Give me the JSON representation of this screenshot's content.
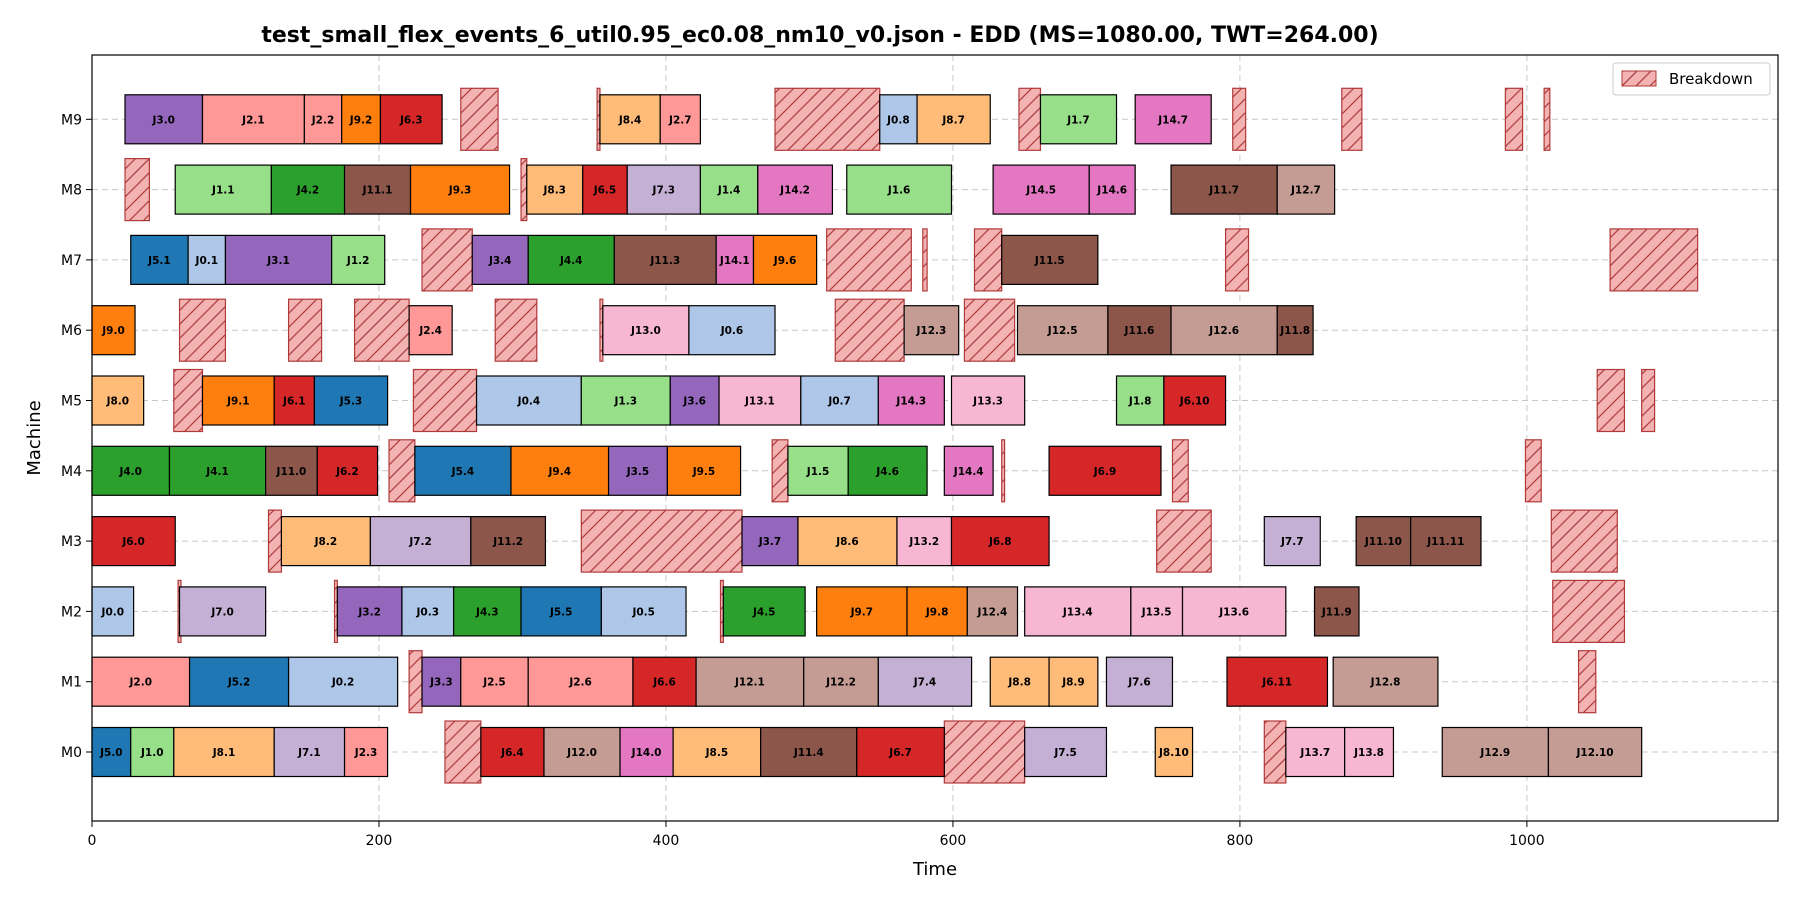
{
  "chart_data": {
    "type": "gantt",
    "title": "test_small_flex_events_6_util0.95_ec0.08_nm10_v0.json - EDD (MS=1080.00, TWT=264.00)",
    "xlabel": "Time",
    "ylabel": "Machine",
    "xlim": [
      0,
      1175
    ],
    "xticks": [
      0,
      200,
      400,
      600,
      800,
      1000
    ],
    "machines": [
      "M0",
      "M1",
      "M2",
      "M3",
      "M4",
      "M5",
      "M6",
      "M7",
      "M8",
      "M9"
    ],
    "grid": true,
    "legend": {
      "position": "top-right",
      "entries": [
        "Breakdown"
      ]
    },
    "job_colors": {
      "J0": "#aec7e8",
      "J1": "#98df8a",
      "J2": "#ff9896",
      "J3": "#9467bd",
      "J4": "#2ca02c",
      "J5": "#1f77b4",
      "J6": "#d62728",
      "J7": "#c5b0d5",
      "J8": "#ffbb78",
      "J9": "#ff7f0e",
      "J11": "#8c564b",
      "J12": "#c49c94",
      "J13": "#f7b6d2",
      "J14": "#e377c2"
    },
    "breakdown_color": "#f4b3b3",
    "operations": [
      {
        "m": "M0",
        "label": "J5.0",
        "start": 0,
        "end": 27
      },
      {
        "m": "M0",
        "label": "J1.0",
        "start": 27,
        "end": 57
      },
      {
        "m": "M0",
        "label": "J8.1",
        "start": 57,
        "end": 127
      },
      {
        "m": "M0",
        "label": "J7.1",
        "start": 127,
        "end": 176
      },
      {
        "m": "M0",
        "label": "J2.3",
        "start": 176,
        "end": 206
      },
      {
        "m": "M0",
        "label": "J6.4",
        "start": 271,
        "end": 315
      },
      {
        "m": "M0",
        "label": "J12.0",
        "start": 315,
        "end": 368
      },
      {
        "m": "M0",
        "label": "J14.0",
        "start": 368,
        "end": 405
      },
      {
        "m": "M0",
        "label": "J8.5",
        "start": 405,
        "end": 466
      },
      {
        "m": "M0",
        "label": "J11.4",
        "start": 466,
        "end": 533
      },
      {
        "m": "M0",
        "label": "J6.7",
        "start": 533,
        "end": 594
      },
      {
        "m": "M0",
        "label": "J7.5",
        "start": 650,
        "end": 707
      },
      {
        "m": "M0",
        "label": "J8.10",
        "start": 741,
        "end": 767
      },
      {
        "m": "M0",
        "label": "J13.7",
        "start": 832,
        "end": 873
      },
      {
        "m": "M0",
        "label": "J13.8",
        "start": 873,
        "end": 907
      },
      {
        "m": "M0",
        "label": "J12.9",
        "start": 941,
        "end": 1015
      },
      {
        "m": "M0",
        "label": "J12.10",
        "start": 1015,
        "end": 1080
      },
      {
        "m": "M1",
        "label": "J2.0",
        "start": 0,
        "end": 68
      },
      {
        "m": "M1",
        "label": "J5.2",
        "start": 68,
        "end": 137
      },
      {
        "m": "M1",
        "label": "J0.2",
        "start": 137,
        "end": 213
      },
      {
        "m": "M1",
        "label": "J3.3",
        "start": 230,
        "end": 257
      },
      {
        "m": "M1",
        "label": "J2.5",
        "start": 257,
        "end": 304
      },
      {
        "m": "M1",
        "label": "J2.6",
        "start": 304,
        "end": 377
      },
      {
        "m": "M1",
        "label": "J6.6",
        "start": 377,
        "end": 421
      },
      {
        "m": "M1",
        "label": "J12.1",
        "start": 421,
        "end": 496
      },
      {
        "m": "M1",
        "label": "J12.2",
        "start": 496,
        "end": 548
      },
      {
        "m": "M1",
        "label": "J7.4",
        "start": 548,
        "end": 613
      },
      {
        "m": "M1",
        "label": "J8.8",
        "start": 626,
        "end": 667
      },
      {
        "m": "M1",
        "label": "J8.9",
        "start": 667,
        "end": 701
      },
      {
        "m": "M1",
        "label": "J7.6",
        "start": 707,
        "end": 753
      },
      {
        "m": "M1",
        "label": "J6.11",
        "start": 791,
        "end": 861
      },
      {
        "m": "M1",
        "label": "J12.8",
        "start": 865,
        "end": 938
      },
      {
        "m": "M2",
        "label": "J0.0",
        "start": 0,
        "end": 29
      },
      {
        "m": "M2",
        "label": "J7.0",
        "start": 61,
        "end": 121
      },
      {
        "m": "M2",
        "label": "J3.2",
        "start": 171,
        "end": 216
      },
      {
        "m": "M2",
        "label": "J0.3",
        "start": 216,
        "end": 252
      },
      {
        "m": "M2",
        "label": "J4.3",
        "start": 252,
        "end": 299
      },
      {
        "m": "M2",
        "label": "J5.5",
        "start": 299,
        "end": 355
      },
      {
        "m": "M2",
        "label": "J0.5",
        "start": 355,
        "end": 414
      },
      {
        "m": "M2",
        "label": "J4.5",
        "start": 440,
        "end": 497
      },
      {
        "m": "M2",
        "label": "J9.7",
        "start": 505,
        "end": 568
      },
      {
        "m": "M2",
        "label": "J9.8",
        "start": 568,
        "end": 610
      },
      {
        "m": "M2",
        "label": "J12.4",
        "start": 610,
        "end": 645
      },
      {
        "m": "M2",
        "label": "J13.4",
        "start": 650,
        "end": 724
      },
      {
        "m": "M2",
        "label": "J13.5",
        "start": 724,
        "end": 760
      },
      {
        "m": "M2",
        "label": "J13.6",
        "start": 760,
        "end": 832
      },
      {
        "m": "M2",
        "label": "J11.9",
        "start": 852,
        "end": 883
      },
      {
        "m": "M3",
        "label": "J6.0",
        "start": 0,
        "end": 58
      },
      {
        "m": "M3",
        "label": "J8.2",
        "start": 132,
        "end": 194
      },
      {
        "m": "M3",
        "label": "J7.2",
        "start": 194,
        "end": 264
      },
      {
        "m": "M3",
        "label": "J11.2",
        "start": 264,
        "end": 316
      },
      {
        "m": "M3",
        "label": "J3.7",
        "start": 453,
        "end": 492
      },
      {
        "m": "M3",
        "label": "J8.6",
        "start": 492,
        "end": 561
      },
      {
        "m": "M3",
        "label": "J13.2",
        "start": 561,
        "end": 599
      },
      {
        "m": "M3",
        "label": "J6.8",
        "start": 599,
        "end": 667
      },
      {
        "m": "M3",
        "label": "J7.7",
        "start": 817,
        "end": 856
      },
      {
        "m": "M3",
        "label": "J11.10",
        "start": 881,
        "end": 919
      },
      {
        "m": "M3",
        "label": "J11.11",
        "start": 919,
        "end": 968
      },
      {
        "m": "M4",
        "label": "J4.0",
        "start": 0,
        "end": 54
      },
      {
        "m": "M4",
        "label": "J4.1",
        "start": 54,
        "end": 121
      },
      {
        "m": "M4",
        "label": "J11.0",
        "start": 121,
        "end": 157
      },
      {
        "m": "M4",
        "label": "J6.2",
        "start": 157,
        "end": 199
      },
      {
        "m": "M4",
        "label": "J5.4",
        "start": 225,
        "end": 292
      },
      {
        "m": "M4",
        "label": "J9.4",
        "start": 292,
        "end": 360
      },
      {
        "m": "M4",
        "label": "J3.5",
        "start": 360,
        "end": 401
      },
      {
        "m": "M4",
        "label": "J9.5",
        "start": 401,
        "end": 452
      },
      {
        "m": "M4",
        "label": "J1.5",
        "start": 485,
        "end": 527
      },
      {
        "m": "M4",
        "label": "J4.6",
        "start": 527,
        "end": 582
      },
      {
        "m": "M4",
        "label": "J14.4",
        "start": 594,
        "end": 628
      },
      {
        "m": "M4",
        "label": "J6.9",
        "start": 667,
        "end": 745
      },
      {
        "m": "M5",
        "label": "J8.0",
        "start": 0,
        "end": 36
      },
      {
        "m": "M5",
        "label": "J9.1",
        "start": 77,
        "end": 127
      },
      {
        "m": "M5",
        "label": "J6.1",
        "start": 127,
        "end": 155
      },
      {
        "m": "M5",
        "label": "J5.3",
        "start": 155,
        "end": 206
      },
      {
        "m": "M5",
        "label": "J0.4",
        "start": 268,
        "end": 341
      },
      {
        "m": "M5",
        "label": "J1.3",
        "start": 341,
        "end": 403
      },
      {
        "m": "M5",
        "label": "J3.6",
        "start": 403,
        "end": 437
      },
      {
        "m": "M5",
        "label": "J13.1",
        "start": 437,
        "end": 494
      },
      {
        "m": "M5",
        "label": "J0.7",
        "start": 494,
        "end": 548
      },
      {
        "m": "M5",
        "label": "J14.3",
        "start": 548,
        "end": 594
      },
      {
        "m": "M5",
        "label": "J13.3",
        "start": 599,
        "end": 650
      },
      {
        "m": "M5",
        "label": "J1.8",
        "start": 714,
        "end": 747
      },
      {
        "m": "M5",
        "label": "J6.10",
        "start": 747,
        "end": 790
      },
      {
        "m": "M6",
        "label": "J9.0",
        "start": 0,
        "end": 30
      },
      {
        "m": "M6",
        "label": "J2.4",
        "start": 221,
        "end": 251
      },
      {
        "m": "M6",
        "label": "J13.0",
        "start": 356,
        "end": 416
      },
      {
        "m": "M6",
        "label": "J0.6",
        "start": 416,
        "end": 476
      },
      {
        "m": "M6",
        "label": "J12.3",
        "start": 566,
        "end": 604
      },
      {
        "m": "M6",
        "label": "J12.5",
        "start": 645,
        "end": 708
      },
      {
        "m": "M6",
        "label": "J11.6",
        "start": 708,
        "end": 752
      },
      {
        "m": "M6",
        "label": "J12.6",
        "start": 752,
        "end": 826
      },
      {
        "m": "M6",
        "label": "J11.8",
        "start": 826,
        "end": 851
      },
      {
        "m": "M7",
        "label": "J5.1",
        "start": 27,
        "end": 67
      },
      {
        "m": "M7",
        "label": "J0.1",
        "start": 67,
        "end": 93
      },
      {
        "m": "M7",
        "label": "J3.1",
        "start": 93,
        "end": 167
      },
      {
        "m": "M7",
        "label": "J1.2",
        "start": 167,
        "end": 204
      },
      {
        "m": "M7",
        "label": "J3.4",
        "start": 265,
        "end": 304
      },
      {
        "m": "M7",
        "label": "J4.4",
        "start": 304,
        "end": 364
      },
      {
        "m": "M7",
        "label": "J11.3",
        "start": 364,
        "end": 435
      },
      {
        "m": "M7",
        "label": "J14.1",
        "start": 435,
        "end": 461
      },
      {
        "m": "M7",
        "label": "J9.6",
        "start": 461,
        "end": 505
      },
      {
        "m": "M7",
        "label": "J11.5",
        "start": 634,
        "end": 701
      },
      {
        "m": "M8",
        "label": "J1.1",
        "start": 58,
        "end": 125
      },
      {
        "m": "M8",
        "label": "J4.2",
        "start": 125,
        "end": 176
      },
      {
        "m": "M8",
        "label": "J11.1",
        "start": 176,
        "end": 222
      },
      {
        "m": "M8",
        "label": "J9.3",
        "start": 222,
        "end": 291
      },
      {
        "m": "M8",
        "label": "J8.3",
        "start": 303,
        "end": 342
      },
      {
        "m": "M8",
        "label": "J6.5",
        "start": 342,
        "end": 373
      },
      {
        "m": "M8",
        "label": "J7.3",
        "start": 373,
        "end": 424
      },
      {
        "m": "M8",
        "label": "J1.4",
        "start": 424,
        "end": 464
      },
      {
        "m": "M8",
        "label": "J14.2",
        "start": 464,
        "end": 516
      },
      {
        "m": "M8",
        "label": "J1.6",
        "start": 526,
        "end": 599
      },
      {
        "m": "M8",
        "label": "J14.5",
        "start": 628,
        "end": 695
      },
      {
        "m": "M8",
        "label": "J14.6",
        "start": 695,
        "end": 727
      },
      {
        "m": "M8",
        "label": "J11.7",
        "start": 752,
        "end": 826
      },
      {
        "m": "M8",
        "label": "J12.7",
        "start": 826,
        "end": 866
      },
      {
        "m": "M9",
        "label": "J3.0",
        "start": 23,
        "end": 77
      },
      {
        "m": "M9",
        "label": "J2.1",
        "start": 77,
        "end": 148
      },
      {
        "m": "M9",
        "label": "J2.2",
        "start": 148,
        "end": 174
      },
      {
        "m": "M9",
        "label": "J9.2",
        "start": 174,
        "end": 201
      },
      {
        "m": "M9",
        "label": "J6.3",
        "start": 201,
        "end": 244
      },
      {
        "m": "M9",
        "label": "J8.4",
        "start": 354,
        "end": 396
      },
      {
        "m": "M9",
        "label": "J2.7",
        "start": 396,
        "end": 424
      },
      {
        "m": "M9",
        "label": "J0.8",
        "start": 549,
        "end": 575
      },
      {
        "m": "M9",
        "label": "J8.7",
        "start": 575,
        "end": 626
      },
      {
        "m": "M9",
        "label": "J1.7",
        "start": 661,
        "end": 714
      },
      {
        "m": "M9",
        "label": "J14.7",
        "start": 727,
        "end": 780
      }
    ],
    "breakdowns": [
      {
        "m": "M0",
        "start": 246,
        "end": 271
      },
      {
        "m": "M0",
        "start": 594,
        "end": 650
      },
      {
        "m": "M0",
        "start": 817,
        "end": 832
      },
      {
        "m": "M1",
        "start": 221,
        "end": 230
      },
      {
        "m": "M1",
        "start": 1036,
        "end": 1048
      },
      {
        "m": "M2",
        "start": 60,
        "end": 62
      },
      {
        "m": "M2",
        "start": 169,
        "end": 171
      },
      {
        "m": "M2",
        "start": 438,
        "end": 440
      },
      {
        "m": "M2",
        "start": 1018,
        "end": 1068
      },
      {
        "m": "M3",
        "start": 123,
        "end": 132
      },
      {
        "m": "M3",
        "start": 341,
        "end": 453
      },
      {
        "m": "M3",
        "start": 742,
        "end": 780
      },
      {
        "m": "M3",
        "start": 1017,
        "end": 1063
      },
      {
        "m": "M4",
        "start": 207,
        "end": 225
      },
      {
        "m": "M4",
        "start": 474,
        "end": 485
      },
      {
        "m": "M4",
        "start": 634,
        "end": 636
      },
      {
        "m": "M4",
        "start": 753,
        "end": 764
      },
      {
        "m": "M4",
        "start": 999,
        "end": 1010
      },
      {
        "m": "M5",
        "start": 57,
        "end": 77
      },
      {
        "m": "M5",
        "start": 224,
        "end": 268
      },
      {
        "m": "M5",
        "start": 1049,
        "end": 1068
      },
      {
        "m": "M5",
        "start": 1080,
        "end": 1089
      },
      {
        "m": "M6",
        "start": 61,
        "end": 93
      },
      {
        "m": "M6",
        "start": 137,
        "end": 160
      },
      {
        "m": "M6",
        "start": 183,
        "end": 221
      },
      {
        "m": "M6",
        "start": 281,
        "end": 310
      },
      {
        "m": "M6",
        "start": 354,
        "end": 356
      },
      {
        "m": "M6",
        "start": 518,
        "end": 566
      },
      {
        "m": "M6",
        "start": 608,
        "end": 643
      },
      {
        "m": "M7",
        "start": 230,
        "end": 265
      },
      {
        "m": "M7",
        "start": 512,
        "end": 571
      },
      {
        "m": "M7",
        "start": 579,
        "end": 582
      },
      {
        "m": "M7",
        "start": 615,
        "end": 634
      },
      {
        "m": "M7",
        "start": 790,
        "end": 806
      },
      {
        "m": "M7",
        "start": 1058,
        "end": 1119
      },
      {
        "m": "M8",
        "start": 23,
        "end": 40
      },
      {
        "m": "M8",
        "start": 299,
        "end": 303
      },
      {
        "m": "M9",
        "start": 257,
        "end": 283
      },
      {
        "m": "M9",
        "start": 352,
        "end": 354
      },
      {
        "m": "M9",
        "start": 476,
        "end": 549
      },
      {
        "m": "M9",
        "start": 646,
        "end": 661
      },
      {
        "m": "M9",
        "start": 795,
        "end": 804
      },
      {
        "m": "M9",
        "start": 871,
        "end": 885
      },
      {
        "m": "M9",
        "start": 985,
        "end": 997
      },
      {
        "m": "M9",
        "start": 1012,
        "end": 1016
      }
    ]
  }
}
